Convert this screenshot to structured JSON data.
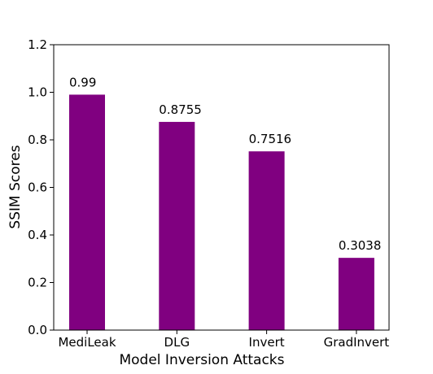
{
  "chart_data": {
    "type": "bar",
    "xlabel": "Model Inversion Attacks",
    "ylabel": "SSIM Scores",
    "categories": [
      "MediLeak",
      "DLG",
      "Invert",
      "GradInvert"
    ],
    "values": [
      0.99,
      0.8755,
      0.7516,
      0.3038
    ],
    "color": "#800080",
    "ylim": [
      0,
      1.2
    ],
    "yticks": [
      {
        "value": 0,
        "label": "0.0"
      },
      0.2,
      0.4,
      0.6,
      0.8,
      {
        "value": 1,
        "label": "1.0"
      },
      1.2
    ]
  }
}
